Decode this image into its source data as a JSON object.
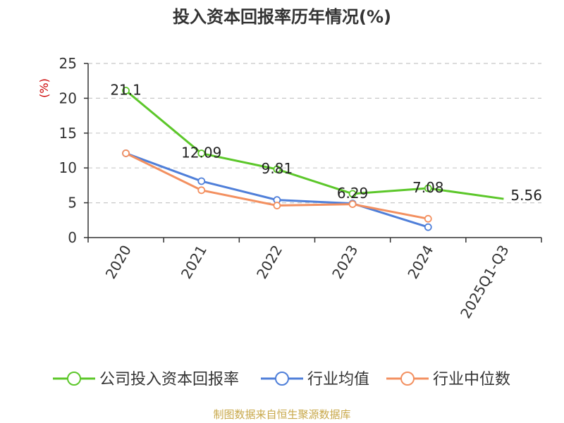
{
  "chart_data": {
    "type": "line",
    "title": "投入资本回报率历年情况(%)",
    "ylabel": "(%)",
    "xlabel": "",
    "categories": [
      "2020",
      "2021",
      "2022",
      "2023",
      "2024",
      "2025Q1-Q3"
    ],
    "ylim": [
      0,
      25
    ],
    "yticks": [
      0,
      5,
      10,
      15,
      20,
      25
    ],
    "grid": true,
    "legend_position": "bottom",
    "series": [
      {
        "name": "公司投入资本回报率",
        "color": "#5cc72a",
        "values": [
          21.1,
          12.09,
          9.81,
          6.29,
          7.08,
          5.56
        ],
        "labels": [
          "21.1",
          "12.09",
          "9.81",
          "6.29",
          "7.08",
          "5.56"
        ]
      },
      {
        "name": "行业均值",
        "color": "#4f7fd9",
        "values": [
          12.1,
          8.1,
          5.4,
          4.9,
          1.5,
          null
        ]
      },
      {
        "name": "行业中位数",
        "color": "#f39060",
        "values": [
          12.1,
          6.8,
          4.6,
          4.8,
          2.7,
          null
        ]
      }
    ],
    "source": "制图数据来自恒生聚源数据库"
  }
}
